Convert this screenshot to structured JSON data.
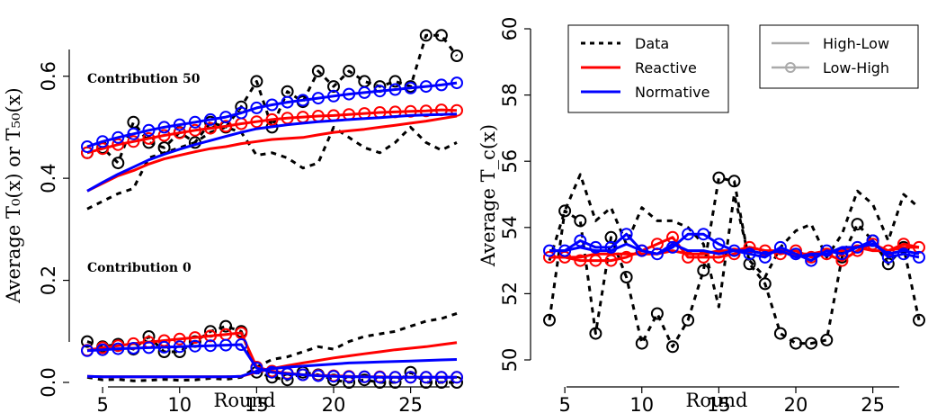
{
  "chart_data": [
    {
      "type": "line",
      "xlabel": "Round",
      "ylabel": "Average T₀(x) or T₅₀(x)",
      "xlim": [
        4,
        28
      ],
      "ylim": [
        0,
        0.7
      ],
      "xticks": [
        5,
        10,
        15,
        20,
        25
      ],
      "yticks": [
        "0.0",
        "0.2",
        "0.4",
        "0.6"
      ],
      "annotations": [
        "Contribution 50",
        "Contribution 0"
      ],
      "x": [
        4,
        5,
        6,
        7,
        8,
        9,
        10,
        11,
        12,
        13,
        14,
        15,
        16,
        17,
        18,
        19,
        20,
        21,
        22,
        23,
        24,
        25,
        26,
        27,
        28
      ],
      "series": [
        {
          "name": "Data",
          "group": "Contribution 50",
          "variant": "High-Low",
          "color": "#000000",
          "dash": true,
          "values": [
            0.34,
            0.355,
            0.37,
            0.38,
            0.44,
            0.45,
            0.46,
            0.47,
            0.49,
            0.5,
            0.49,
            0.445,
            0.45,
            0.44,
            0.42,
            0.43,
            0.5,
            0.48,
            0.46,
            0.45,
            0.47,
            0.5,
            0.47,
            0.455,
            0.47
          ]
        },
        {
          "name": "Data",
          "group": "Contribution 50",
          "variant": "Low-High",
          "color": "#000000",
          "dash": true,
          "values": [
            0.45,
            0.46,
            0.43,
            0.51,
            0.47,
            0.46,
            0.49,
            0.47,
            0.51,
            0.5,
            0.54,
            0.59,
            0.5,
            0.57,
            0.55,
            0.61,
            0.58,
            0.61,
            0.59,
            0.58,
            0.59,
            0.58,
            0.68,
            0.68,
            0.64
          ]
        },
        {
          "name": "Reactive",
          "group": "Contribution 50",
          "variant": "High-Low",
          "color": "#ff0000",
          "dash": false,
          "values": [
            0.375,
            0.39,
            0.405,
            0.415,
            0.428,
            0.438,
            0.445,
            0.452,
            0.458,
            0.462,
            0.468,
            0.472,
            0.476,
            0.478,
            0.48,
            0.485,
            0.49,
            0.493,
            0.496,
            0.5,
            0.504,
            0.508,
            0.512,
            0.517,
            0.522
          ]
        },
        {
          "name": "Reactive",
          "group": "Contribution 50",
          "variant": "Low-High",
          "color": "#ff0000",
          "dash": false,
          "values": [
            0.45,
            0.458,
            0.466,
            0.472,
            0.478,
            0.484,
            0.489,
            0.494,
            0.498,
            0.502,
            0.507,
            0.511,
            0.515,
            0.518,
            0.52,
            0.522,
            0.523,
            0.525,
            0.527,
            0.529,
            0.53,
            0.531,
            0.532,
            0.534,
            0.533
          ]
        },
        {
          "name": "Normative",
          "group": "Contribution 50",
          "variant": "High-Low",
          "color": "#0000ff",
          "dash": false,
          "values": [
            0.375,
            0.392,
            0.408,
            0.422,
            0.436,
            0.447,
            0.457,
            0.466,
            0.474,
            0.482,
            0.49,
            0.497,
            0.501,
            0.505,
            0.508,
            0.511,
            0.513,
            0.515,
            0.517,
            0.519,
            0.521,
            0.523,
            0.524,
            0.525,
            0.526
          ]
        },
        {
          "name": "Normative",
          "group": "Contribution 50",
          "variant": "Low-High",
          "color": "#0000ff",
          "dash": false,
          "values": [
            0.462,
            0.472,
            0.48,
            0.487,
            0.494,
            0.5,
            0.505,
            0.51,
            0.515,
            0.52,
            0.528,
            0.538,
            0.544,
            0.549,
            0.553,
            0.557,
            0.561,
            0.565,
            0.568,
            0.571,
            0.574,
            0.577,
            0.58,
            0.583,
            0.587
          ]
        },
        {
          "name": "Data",
          "group": "Contribution 0",
          "variant": "High-Low",
          "color": "#000000",
          "dash": true,
          "values": [
            0.01,
            0.005,
            0.006,
            0.003,
            0.004,
            0.006,
            0.004,
            0.005,
            0.008,
            0.006,
            0.01,
            0.03,
            0.045,
            0.05,
            0.06,
            0.07,
            0.065,
            0.08,
            0.09,
            0.095,
            0.1,
            0.11,
            0.12,
            0.125,
            0.135
          ]
        },
        {
          "name": "Data",
          "group": "Contribution 0",
          "variant": "Low-High",
          "color": "#000000",
          "dash": true,
          "values": [
            0.08,
            0.07,
            0.075,
            0.065,
            0.09,
            0.06,
            0.06,
            0.08,
            0.1,
            0.11,
            0.1,
            0.02,
            0.01,
            0.005,
            0.02,
            0.015,
            0.005,
            0.0,
            0.005,
            0.0,
            0.0,
            0.02,
            0.0,
            0.0,
            0.0
          ]
        },
        {
          "name": "Reactive",
          "group": "Contribution 0",
          "variant": "High-Low",
          "color": "#ff0000",
          "dash": false,
          "values": [
            0.012,
            0.011,
            0.011,
            0.011,
            0.011,
            0.011,
            0.011,
            0.011,
            0.011,
            0.011,
            0.012,
            0.02,
            0.027,
            0.033,
            0.038,
            0.043,
            0.048,
            0.052,
            0.056,
            0.06,
            0.064,
            0.067,
            0.07,
            0.074,
            0.078
          ]
        },
        {
          "name": "Reactive",
          "group": "Contribution 0",
          "variant": "Low-High",
          "color": "#ff0000",
          "dash": false,
          "values": [
            0.063,
            0.068,
            0.072,
            0.076,
            0.079,
            0.082,
            0.085,
            0.088,
            0.091,
            0.094,
            0.097,
            0.03,
            0.022,
            0.018,
            0.015,
            0.014,
            0.013,
            0.012,
            0.011,
            0.011,
            0.01,
            0.01,
            0.01,
            0.01,
            0.01
          ]
        },
        {
          "name": "Normative",
          "group": "Contribution 0",
          "variant": "High-Low",
          "color": "#0000ff",
          "dash": false,
          "values": [
            0.012,
            0.011,
            0.011,
            0.011,
            0.011,
            0.011,
            0.011,
            0.011,
            0.011,
            0.011,
            0.012,
            0.022,
            0.027,
            0.03,
            0.032,
            0.034,
            0.036,
            0.038,
            0.039,
            0.04,
            0.041,
            0.042,
            0.043,
            0.044,
            0.045
          ]
        },
        {
          "name": "Normative",
          "group": "Contribution 0",
          "variant": "Low-High",
          "color": "#0000ff",
          "dash": false,
          "values": [
            0.062,
            0.064,
            0.066,
            0.067,
            0.068,
            0.069,
            0.07,
            0.071,
            0.072,
            0.073,
            0.074,
            0.028,
            0.02,
            0.017,
            0.015,
            0.013,
            0.012,
            0.011,
            0.011,
            0.01,
            0.01,
            0.01,
            0.01,
            0.01,
            0.01
          ]
        }
      ]
    },
    {
      "type": "line",
      "xlabel": "Round",
      "ylabel": "Average T_c(x)",
      "xlim": [
        4,
        28
      ],
      "ylim": [
        50,
        60
      ],
      "xticks": [
        5,
        10,
        15,
        20,
        25
      ],
      "yticks": [
        "50",
        "52",
        "54",
        "56",
        "58",
        "60"
      ],
      "legend_series": {
        "position": "top-left",
        "entries": [
          {
            "label": "Data",
            "color": "#000000",
            "dash": true
          },
          {
            "label": "Reactive",
            "color": "#ff0000",
            "dash": false
          },
          {
            "label": "Normative",
            "color": "#0000ff",
            "dash": false
          }
        ]
      },
      "legend_treatment": {
        "position": "top-right",
        "entries": [
          {
            "label": "High-Low",
            "color": "#aaaaaa",
            "marker": false
          },
          {
            "label": "Low-High",
            "color": "#aaaaaa",
            "marker": true
          }
        ]
      },
      "x": [
        4,
        5,
        6,
        7,
        8,
        9,
        10,
        11,
        12,
        13,
        14,
        15,
        16,
        17,
        18,
        19,
        20,
        21,
        22,
        23,
        24,
        25,
        26,
        27,
        28
      ],
      "series": [
        {
          "name": "Data",
          "variant": "High-Low",
          "color": "#000000",
          "dash": true,
          "values": [
            53.0,
            54.5,
            55.6,
            54.2,
            54.6,
            53.5,
            54.6,
            54.2,
            54.2,
            54.0,
            53.5,
            51.6,
            55.0,
            53.0,
            52.5,
            53.4,
            53.9,
            54.1,
            53.1,
            53.8,
            55.1,
            54.7,
            53.6,
            55.0,
            54.6
          ]
        },
        {
          "name": "Data",
          "variant": "Low-High",
          "color": "#000000",
          "dash": true,
          "values": [
            51.2,
            54.5,
            54.2,
            50.8,
            53.7,
            52.5,
            50.5,
            51.4,
            50.4,
            51.2,
            52.7,
            55.5,
            55.4,
            52.9,
            52.3,
            50.8,
            50.5,
            50.5,
            50.6,
            53.1,
            54.1,
            53.6,
            52.9,
            53.4,
            51.2
          ]
        },
        {
          "name": "Reactive",
          "variant": "High-Low",
          "color": "#ff0000",
          "dash": false,
          "values": [
            53.1,
            53.1,
            53.1,
            53.2,
            53.2,
            53.2,
            53.2,
            53.2,
            53.3,
            53.2,
            53.2,
            53.3,
            53.3,
            53.4,
            53.3,
            53.3,
            53.2,
            53.2,
            53.3,
            53.3,
            53.4,
            53.3,
            53.3,
            53.4,
            53.4
          ]
        },
        {
          "name": "Reactive",
          "variant": "Low-High",
          "color": "#ff0000",
          "dash": false,
          "values": [
            53.1,
            53.1,
            53.0,
            53.0,
            53.0,
            53.1,
            53.3,
            53.5,
            53.7,
            53.1,
            53.1,
            53.1,
            53.2,
            53.4,
            53.3,
            53.2,
            53.3,
            53.1,
            53.2,
            53.0,
            53.3,
            53.5,
            53.3,
            53.5,
            53.4
          ]
        },
        {
          "name": "Normative",
          "variant": "High-Low",
          "color": "#0000ff",
          "dash": false,
          "values": [
            53.3,
            53.3,
            53.4,
            53.3,
            53.3,
            53.5,
            53.3,
            53.2,
            53.5,
            53.3,
            53.3,
            53.2,
            53.3,
            53.3,
            53.2,
            53.3,
            53.1,
            53.2,
            53.2,
            53.4,
            53.4,
            53.5,
            53.2,
            53.3,
            53.2
          ]
        },
        {
          "name": "Normative",
          "variant": "Low-High",
          "color": "#0000ff",
          "dash": false,
          "values": [
            53.3,
            53.3,
            53.6,
            53.4,
            53.4,
            53.8,
            53.3,
            53.2,
            53.4,
            53.8,
            53.8,
            53.5,
            53.3,
            53.2,
            53.1,
            53.4,
            53.2,
            53.0,
            53.3,
            53.2,
            53.4,
            53.6,
            53.1,
            53.2,
            53.1
          ]
        }
      ]
    }
  ]
}
